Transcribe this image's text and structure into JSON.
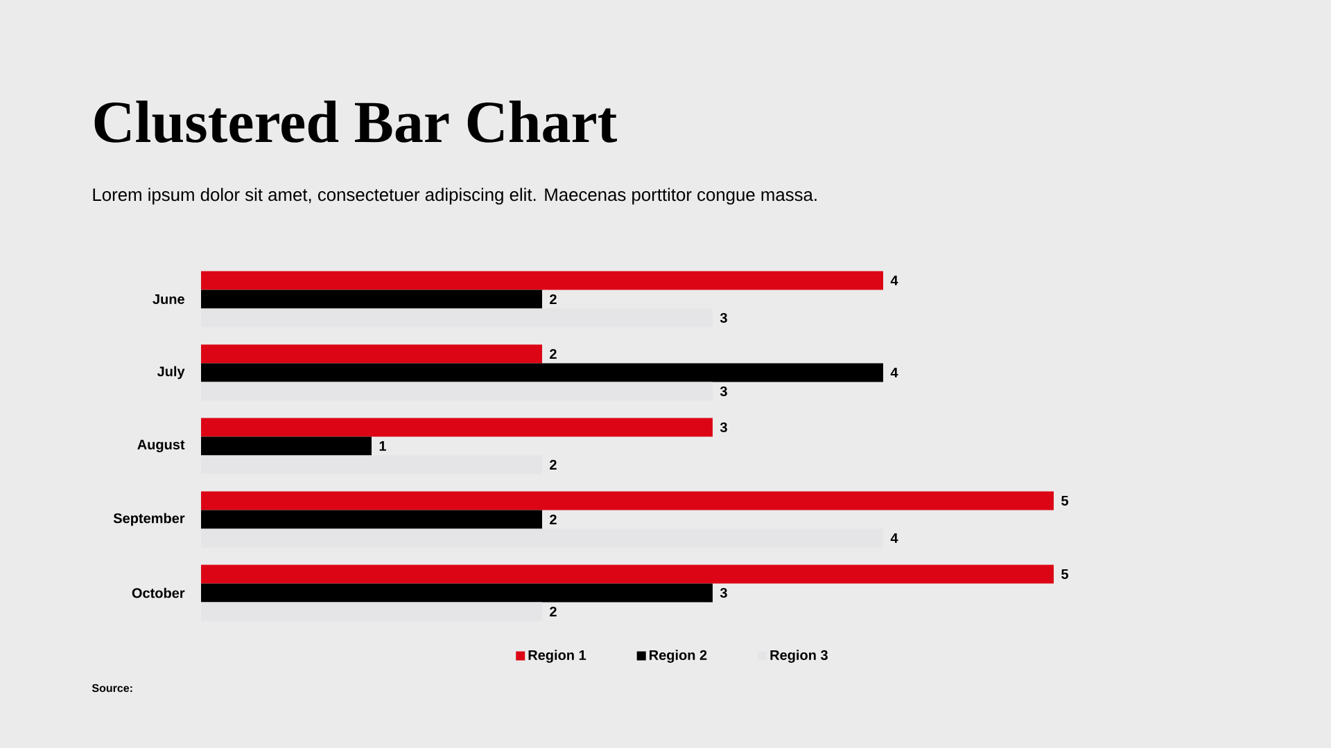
{
  "chart_data": {
    "type": "bar",
    "orientation": "horizontal",
    "title": "Clustered Bar Chart",
    "subtitle": "Lorem ipsum dolor sit amet, consectetuer adipiscing elit. Maecenas porttitor congue massa.",
    "categories": [
      "June",
      "July",
      "August",
      "September",
      "October"
    ],
    "series": [
      {
        "name": "Region 1",
        "color": "#dc0515",
        "values": [
          4,
          2,
          3,
          5,
          5
        ]
      },
      {
        "name": "Region 2",
        "color": "#000000",
        "values": [
          2,
          4,
          1,
          2,
          3
        ]
      },
      {
        "name": "Region 3",
        "color": "#e5e5e7",
        "values": [
          3,
          3,
          2,
          4,
          2
        ]
      }
    ],
    "xlim": [
      0,
      5
    ],
    "data_labels": true,
    "legend": "bottom",
    "tick_labels": "y",
    "annotations": [
      "Source:"
    ]
  }
}
